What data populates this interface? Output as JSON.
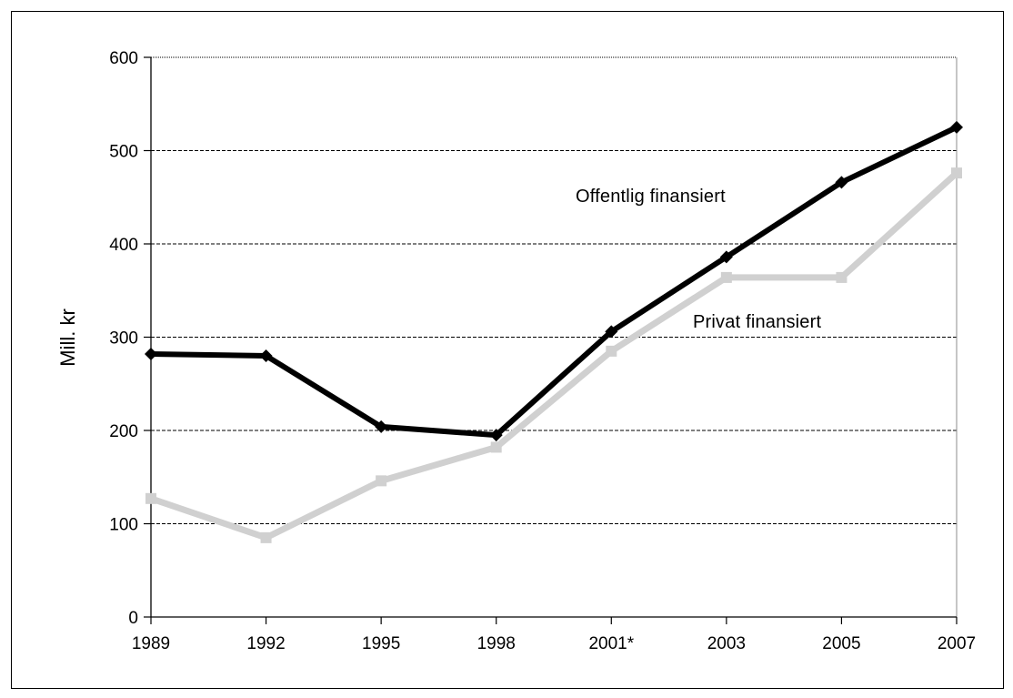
{
  "chart_data": {
    "type": "line",
    "title": "",
    "xlabel": "",
    "ylabel": "Mill. kr",
    "categories": [
      "1989",
      "1992",
      "1995",
      "1998",
      "2001*",
      "2003",
      "2005",
      "2007"
    ],
    "ylim": [
      0,
      600
    ],
    "yticks": [
      0,
      100,
      200,
      300,
      400,
      500,
      600
    ],
    "grid": "horizontal dashed",
    "legend": "none",
    "series": [
      {
        "name": "Offentlig finansiert",
        "color": "#000000",
        "marker": "diamond",
        "values": [
          282,
          280,
          204,
          195,
          306,
          386,
          466,
          525
        ]
      },
      {
        "name": "Privat finansiert",
        "color": "#d0d0d0",
        "marker": "square",
        "values": [
          127,
          85,
          146,
          182,
          285,
          364,
          364,
          476
        ]
      }
    ]
  }
}
